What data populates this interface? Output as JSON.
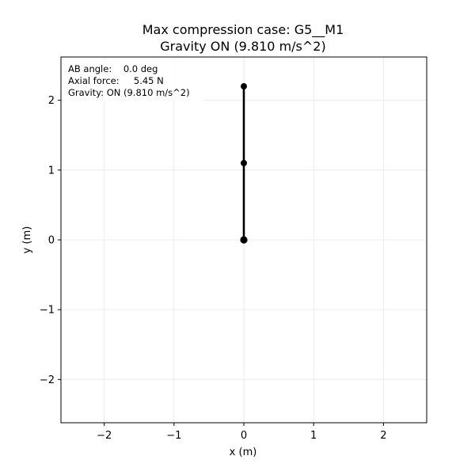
{
  "chart_data": {
    "type": "line",
    "title_lines": [
      "Max compression case: G5__M1",
      "Gravity ON (9.810 m/s^2)"
    ],
    "xlabel": "x (m)",
    "ylabel": "y (m)",
    "xlim": [
      -2.62,
      2.62
    ],
    "ylim": [
      -2.62,
      2.62
    ],
    "xticks": [
      -2,
      -1,
      0,
      1,
      2
    ],
    "yticks": [
      -2,
      -1,
      0,
      1,
      2
    ],
    "xtick_labels": [
      "−2",
      "−1",
      "0",
      "1",
      "2"
    ],
    "ytick_labels": [
      "−2",
      "−1",
      "0",
      "1",
      "2"
    ],
    "grid": true,
    "series": [
      {
        "x": [
          0,
          0,
          0
        ],
        "y": [
          0,
          1.1,
          2.2
        ],
        "color": "#000000"
      }
    ],
    "info_box": {
      "lines": [
        "AB angle:    0.0 deg",
        "Axial force:     5.45 N",
        "Gravity: ON (9.810 m/s^2)"
      ]
    }
  }
}
